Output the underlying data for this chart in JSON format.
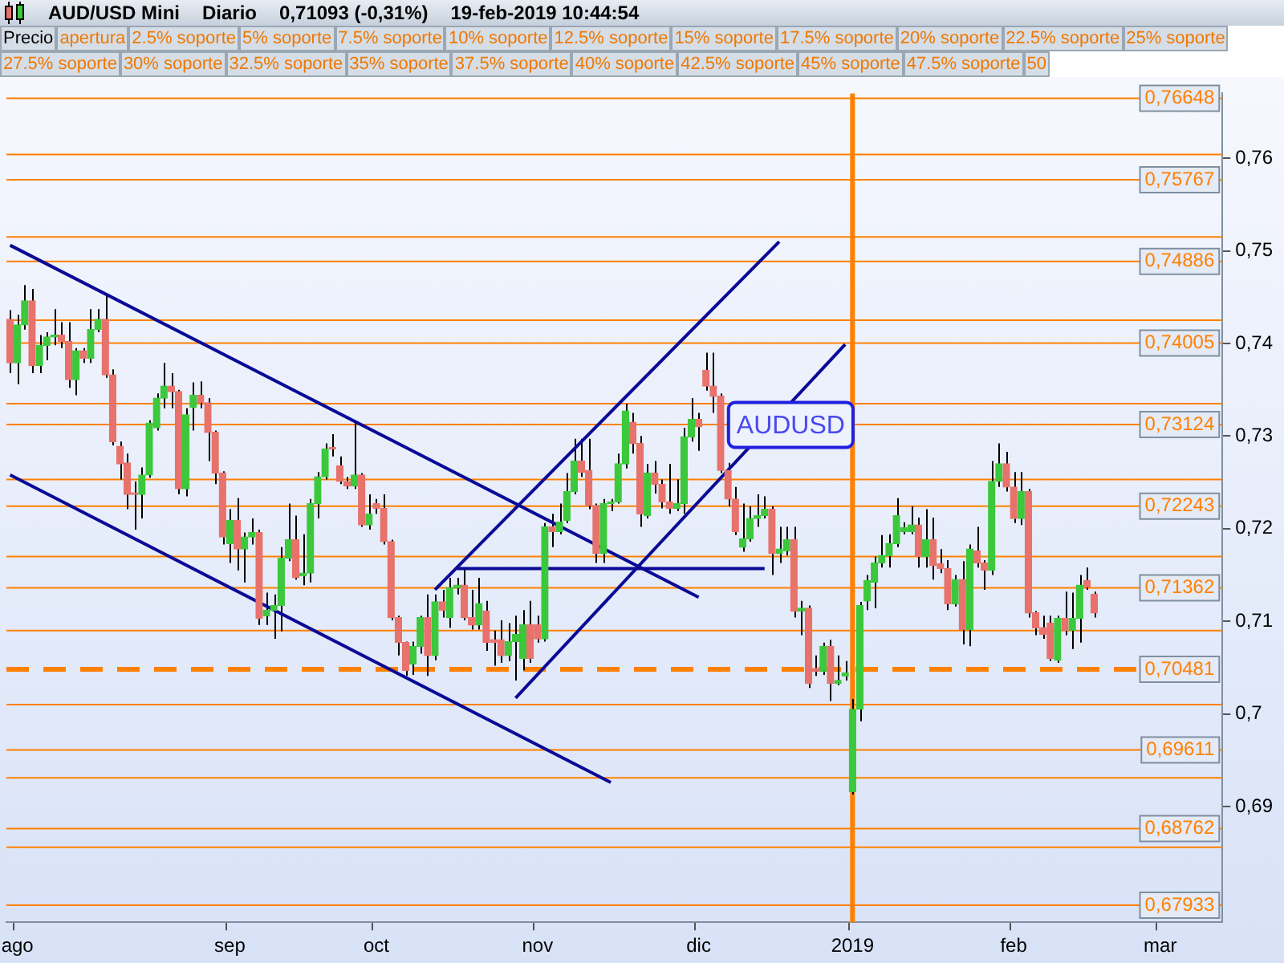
{
  "chart_data": {
    "type": "candlestick",
    "title": "AUD/USD Mini",
    "subtitle": "Diario",
    "annotations": [
      "0,71093 (-0,31%)",
      "19-feb-2019 10:44:54",
      "Precio",
      "apertura",
      "2.5% soporte",
      "5% soporte",
      "7.5% soporte",
      "10% soporte",
      "12.5% soporte",
      "15% soporte",
      "17.5% soporte",
      "20% soporte",
      "22.5% soporte",
      "25% soporte",
      "27.5% soporte",
      "30% soporte",
      "32.5% soporte",
      "35% soporte",
      "37.5% soporte",
      "40% soporte",
      "42.5% soporte",
      "45% soporte",
      "47.5% soporte",
      "50",
      "AUDUSD"
    ],
    "categories": [
      null,
      "ago",
      null,
      null,
      null,
      null,
      null,
      null,
      null,
      null,
      null,
      null,
      null,
      null,
      null,
      null,
      null,
      null,
      null,
      null,
      null,
      null,
      null,
      null,
      null,
      null,
      null,
      null,
      null,
      null,
      "sep",
      null,
      null,
      null,
      null,
      null,
      null,
      null,
      null,
      null,
      null,
      null,
      null,
      null,
      null,
      null,
      null,
      null,
      null,
      null,
      "oct",
      null,
      null,
      null,
      null,
      null,
      null,
      null,
      null,
      null,
      null,
      null,
      null,
      null,
      null,
      null,
      null,
      null,
      null,
      null,
      null,
      null,
      "nov",
      null,
      null,
      null,
      null,
      null,
      null,
      null,
      null,
      null,
      null,
      null,
      null,
      null,
      null,
      null,
      null,
      null,
      null,
      null,
      null,
      null,
      "dic",
      null,
      null,
      null,
      null,
      null,
      null,
      null,
      null,
      null,
      null,
      null,
      null,
      null,
      null,
      null,
      null,
      null,
      null,
      null,
      null,
      "2019",
      null,
      null,
      null,
      null,
      null,
      null,
      null,
      null,
      null,
      null,
      null,
      null,
      null,
      null,
      null,
      null,
      null,
      null,
      null,
      null,
      null,
      "feb",
      null,
      null,
      null,
      null,
      null,
      null,
      null,
      null,
      null,
      null,
      null,
      null,
      null,
      null,
      null,
      null,
      null,
      null,
      null,
      "mar",
      null,
      null,
      null,
      null,
      null,
      null,
      null,
      null
    ],
    "ohlc": [
      [
        0.7426,
        0.7436,
        0.7368,
        0.7379
      ],
      [
        0.7379,
        0.7431,
        0.7356,
        0.742
      ],
      [
        0.742,
        0.7463,
        0.7415,
        0.7446
      ],
      [
        0.7446,
        0.7459,
        0.7368,
        0.7376
      ],
      [
        0.7376,
        0.7409,
        0.7368,
        0.7398
      ],
      [
        0.7398,
        0.7412,
        0.7382,
        0.7407
      ],
      [
        0.7407,
        0.7437,
        0.7398,
        0.7409
      ],
      [
        0.7409,
        0.7423,
        0.7395,
        0.7402
      ],
      [
        0.7402,
        0.7423,
        0.7352,
        0.7361
      ],
      [
        0.7361,
        0.7395,
        0.7344,
        0.7392
      ],
      [
        0.7392,
        0.7395,
        0.7379,
        0.7384
      ],
      [
        0.7384,
        0.7437,
        0.7379,
        0.7415
      ],
      [
        0.7415,
        0.7437,
        0.7412,
        0.7426
      ],
      [
        0.7426,
        0.7451,
        0.7363,
        0.7366
      ],
      [
        0.7366,
        0.7372,
        0.729,
        0.7294
      ],
      [
        0.7289,
        0.7294,
        0.7253,
        0.727
      ],
      [
        0.7271,
        0.7281,
        0.7221,
        0.7237
      ],
      [
        0.7238,
        0.7251,
        0.7199,
        0.7237
      ],
      [
        0.7237,
        0.7266,
        0.7211,
        0.7258
      ],
      [
        0.7258,
        0.7317,
        0.7255,
        0.7314
      ],
      [
        0.7309,
        0.7346,
        0.7306,
        0.7341
      ],
      [
        0.7341,
        0.7379,
        0.733,
        0.7354
      ],
      [
        0.7354,
        0.7368,
        0.733,
        0.7348
      ],
      [
        0.7348,
        0.735,
        0.7237,
        0.7243
      ],
      [
        0.7243,
        0.733,
        0.7235,
        0.7323
      ],
      [
        0.7331,
        0.7358,
        0.7306,
        0.7344
      ],
      [
        0.7344,
        0.7359,
        0.733,
        0.7336
      ],
      [
        0.7336,
        0.7341,
        0.7273,
        0.7304
      ],
      [
        0.7304,
        0.7306,
        0.7248,
        0.726
      ],
      [
        0.726,
        0.7262,
        0.7183,
        0.7191
      ],
      [
        0.7184,
        0.7221,
        0.7163,
        0.7209
      ],
      [
        0.7209,
        0.7233,
        0.7155,
        0.7178
      ],
      [
        0.7178,
        0.7196,
        0.7142,
        0.7191
      ],
      [
        0.7191,
        0.7211,
        0.7183,
        0.7196
      ],
      [
        0.7196,
        0.7199,
        0.7096,
        0.7103
      ],
      [
        0.7106,
        0.7131,
        0.7096,
        0.7112
      ],
      [
        0.7112,
        0.7129,
        0.7081,
        0.7117
      ],
      [
        0.7117,
        0.718,
        0.7089,
        0.7168
      ],
      [
        0.7168,
        0.7227,
        0.7165,
        0.7188
      ],
      [
        0.7188,
        0.7214,
        0.7145,
        0.7147
      ],
      [
        0.7149,
        0.7194,
        0.7139,
        0.7152
      ],
      [
        0.7152,
        0.7232,
        0.7142,
        0.7227
      ],
      [
        0.7227,
        0.7261,
        0.7211,
        0.7256
      ],
      [
        0.7256,
        0.7292,
        0.7253,
        0.7286
      ],
      [
        0.7287,
        0.7302,
        0.7278,
        0.7286
      ],
      [
        0.7268,
        0.7278,
        0.7248,
        0.7251
      ],
      [
        0.7251,
        0.7256,
        0.7243,
        0.7246
      ],
      [
        0.7246,
        0.7315,
        0.7243,
        0.7258
      ],
      [
        0.7258,
        0.726,
        0.7202,
        0.7204
      ],
      [
        0.7204,
        0.7237,
        0.7199,
        0.7216
      ],
      [
        0.7227,
        0.7232,
        0.7216,
        0.7222
      ],
      [
        0.7222,
        0.7237,
        0.7183,
        0.7186
      ],
      [
        0.7186,
        0.7188,
        0.7101,
        0.7104
      ],
      [
        0.7104,
        0.7106,
        0.7063,
        0.7077
      ],
      [
        0.7077,
        0.7078,
        0.7041,
        0.7047
      ],
      [
        0.7054,
        0.7078,
        0.7042,
        0.7073
      ],
      [
        0.7073,
        0.7106,
        0.7065,
        0.7104
      ],
      [
        0.7104,
        0.7129,
        0.7041,
        0.7063
      ],
      [
        0.7063,
        0.7129,
        0.7058,
        0.7121
      ],
      [
        0.7121,
        0.7134,
        0.7104,
        0.7112
      ],
      [
        0.7104,
        0.7147,
        0.7093,
        0.7136
      ],
      [
        0.7136,
        0.7147,
        0.7129,
        0.7139
      ],
      [
        0.7139,
        0.7157,
        0.7101,
        0.7104
      ],
      [
        0.7104,
        0.7134,
        0.7091,
        0.7096
      ],
      [
        0.7096,
        0.7147,
        0.7091,
        0.7119
      ],
      [
        0.7111,
        0.7122,
        0.7068,
        0.7077
      ],
      [
        0.708,
        0.709,
        0.7052,
        0.7077
      ],
      [
        0.708,
        0.7101,
        0.7055,
        0.7063
      ],
      [
        0.7063,
        0.7098,
        0.7057,
        0.7078
      ],
      [
        0.7078,
        0.7106,
        0.7036,
        0.7086
      ],
      [
        0.706,
        0.7112,
        0.7047,
        0.7096
      ],
      [
        0.7096,
        0.7122,
        0.7055,
        0.706
      ],
      [
        0.7096,
        0.7106,
        0.7077,
        0.7081
      ],
      [
        0.7081,
        0.7206,
        0.7078,
        0.7202
      ],
      [
        0.7202,
        0.7216,
        0.718,
        0.7197
      ],
      [
        0.7197,
        0.7227,
        0.7194,
        0.7207
      ],
      [
        0.7209,
        0.726,
        0.7206,
        0.724
      ],
      [
        0.724,
        0.7297,
        0.7237,
        0.7273
      ],
      [
        0.7273,
        0.7297,
        0.7256,
        0.7261
      ],
      [
        0.7263,
        0.7297,
        0.7221,
        0.7225
      ],
      [
        0.7225,
        0.7227,
        0.7163,
        0.7173
      ],
      [
        0.7173,
        0.7232,
        0.7163,
        0.7227
      ],
      [
        0.7227,
        0.7232,
        0.7219,
        0.7229
      ],
      [
        0.7229,
        0.7281,
        0.7227,
        0.727
      ],
      [
        0.727,
        0.7335,
        0.7265,
        0.7327
      ],
      [
        0.7315,
        0.7325,
        0.7281,
        0.7292
      ],
      [
        0.7292,
        0.73,
        0.7202,
        0.7216
      ],
      [
        0.7214,
        0.727,
        0.7211,
        0.726
      ],
      [
        0.726,
        0.7273,
        0.7238,
        0.7248
      ],
      [
        0.7248,
        0.7253,
        0.7222,
        0.7229
      ],
      [
        0.7229,
        0.727,
        0.7216,
        0.7222
      ],
      [
        0.7222,
        0.7253,
        0.7219,
        0.7227
      ],
      [
        0.7227,
        0.7309,
        0.7216,
        0.7299
      ],
      [
        0.7299,
        0.7341,
        0.7294,
        0.7318
      ],
      [
        0.7318,
        0.7325,
        0.7284,
        0.731
      ],
      [
        0.7371,
        0.739,
        0.7349,
        0.7354
      ],
      [
        0.7354,
        0.739,
        0.7325,
        0.7343
      ],
      [
        0.7343,
        0.7346,
        0.726,
        0.7263
      ],
      [
        0.7263,
        0.7271,
        0.7224,
        0.7232
      ],
      [
        0.7232,
        0.7245,
        0.7193,
        0.7197
      ],
      [
        0.718,
        0.7227,
        0.7175,
        0.7189
      ],
      [
        0.7189,
        0.7224,
        0.7186,
        0.7211
      ],
      [
        0.7211,
        0.7237,
        0.7202,
        0.7214
      ],
      [
        0.7214,
        0.7235,
        0.7211,
        0.7221
      ],
      [
        0.7221,
        0.7224,
        0.715,
        0.7173
      ],
      [
        0.7173,
        0.7202,
        0.7163,
        0.7178
      ],
      [
        0.7176,
        0.7202,
        0.7171,
        0.7188
      ],
      [
        0.7188,
        0.7202,
        0.7104,
        0.7111
      ],
      [
        0.7111,
        0.7122,
        0.7085,
        0.7114
      ],
      [
        0.7114,
        0.7117,
        0.7028,
        0.7033
      ],
      [
        0.7049,
        0.7063,
        0.7041,
        0.7046
      ],
      [
        0.7046,
        0.7077,
        0.7042,
        0.7073
      ],
      [
        0.7073,
        0.708,
        0.7014,
        0.7033
      ],
      [
        0.7033,
        0.7063,
        0.7031,
        0.7036
      ],
      [
        0.7041,
        0.7057,
        0.7036,
        0.7044
      ],
      [
        0.6916,
        0.7016,
        0.6913,
        0.7005
      ],
      [
        0.7005,
        0.7121,
        0.6992,
        0.7117
      ],
      [
        0.7122,
        0.715,
        0.7112,
        0.7144
      ],
      [
        0.7142,
        0.717,
        0.7114,
        0.7163
      ],
      [
        0.7163,
        0.7193,
        0.7158,
        0.7171
      ],
      [
        0.7171,
        0.7194,
        0.7158,
        0.7184
      ],
      [
        0.7184,
        0.7233,
        0.718,
        0.7214
      ],
      [
        0.7197,
        0.7207,
        0.7194,
        0.7201
      ],
      [
        0.7197,
        0.7224,
        0.7194,
        0.7204
      ],
      [
        0.7204,
        0.7212,
        0.7158,
        0.717
      ],
      [
        0.717,
        0.7221,
        0.7158,
        0.7188
      ],
      [
        0.7188,
        0.7212,
        0.7145,
        0.716
      ],
      [
        0.7162,
        0.7178,
        0.7152,
        0.7157
      ],
      [
        0.7157,
        0.7166,
        0.7112,
        0.7119
      ],
      [
        0.7119,
        0.715,
        0.7116,
        0.7145
      ],
      [
        0.7145,
        0.7165,
        0.7075,
        0.7091
      ],
      [
        0.7091,
        0.7183,
        0.7073,
        0.7178
      ],
      [
        0.7176,
        0.7202,
        0.7158,
        0.7163
      ],
      [
        0.7163,
        0.7166,
        0.7134,
        0.7155
      ],
      [
        0.7155,
        0.7273,
        0.715,
        0.7251
      ],
      [
        0.7251,
        0.7292,
        0.7245,
        0.727
      ],
      [
        0.727,
        0.7283,
        0.724,
        0.7245
      ],
      [
        0.7245,
        0.7261,
        0.7206,
        0.7211
      ],
      [
        0.7211,
        0.7261,
        0.7204,
        0.724
      ],
      [
        0.724,
        0.7243,
        0.7104,
        0.7109
      ],
      [
        0.7109,
        0.7111,
        0.7085,
        0.7093
      ],
      [
        0.7093,
        0.7106,
        0.7081,
        0.7086
      ],
      [
        0.7098,
        0.7106,
        0.7057,
        0.706
      ],
      [
        0.7058,
        0.7106,
        0.7055,
        0.7103
      ],
      [
        0.7103,
        0.7132,
        0.7085,
        0.709
      ],
      [
        0.709,
        0.7131,
        0.707,
        0.7103
      ],
      [
        0.7103,
        0.715,
        0.7077,
        0.7139
      ],
      [
        0.7144,
        0.7158,
        0.7134,
        0.7137
      ],
      [
        0.7129,
        0.7132,
        0.7104,
        0.7109
      ],
      null,
      null,
      null,
      null,
      null,
      null,
      null,
      null,
      null,
      null,
      null,
      null,
      null,
      null,
      null,
      null,
      null
    ],
    "colors": [
      "#e8726c",
      "#3cc83c",
      "#3cc83c",
      "#e8726c",
      "#3cc83c",
      "#3cc83c",
      "#3cc83c",
      "#e8726c",
      "#e8726c",
      "#3cc83c",
      "#e8726c",
      "#3cc83c",
      "#3cc83c",
      "#e8726c",
      "#e8726c",
      "#e8726c",
      "#e8726c",
      "#e8726c",
      "#3cc83c",
      "#3cc83c",
      "#3cc83c",
      "#3cc83c",
      "#e8726c",
      "#e8726c",
      "#3cc83c",
      "#3cc83c",
      "#e8726c",
      "#e8726c",
      "#e8726c",
      "#e8726c",
      "#3cc83c",
      "#e8726c",
      "#3cc83c",
      "#3cc83c",
      "#e8726c",
      "#3cc83c",
      "#3cc83c",
      "#3cc83c",
      "#3cc83c",
      "#e8726c",
      "#3cc83c",
      "#3cc83c",
      "#3cc83c",
      "#3cc83c",
      "#e8726c",
      "#e8726c",
      "#e8726c",
      "#3cc83c",
      "#e8726c",
      "#3cc83c",
      "#e8726c",
      "#e8726c",
      "#e8726c",
      "#e8726c",
      "#e8726c",
      "#3cc83c",
      "#3cc83c",
      "#e8726c",
      "#3cc83c",
      "#e8726c",
      "#3cc83c",
      "#3cc83c",
      "#e8726c",
      "#e8726c",
      "#3cc83c",
      "#e8726c",
      "#e8726c",
      "#e8726c",
      "#3cc83c",
      "#3cc83c",
      "#3cc83c",
      "#e8726c",
      "#e8726c",
      "#3cc83c",
      "#e8726c",
      "#3cc83c",
      "#3cc83c",
      "#3cc83c",
      "#e8726c",
      "#e8726c",
      "#e8726c",
      "#3cc83c",
      "#3cc83c",
      "#3cc83c",
      "#3cc83c",
      "#e8726c",
      "#e8726c",
      "#3cc83c",
      "#e8726c",
      "#e8726c",
      "#e8726c",
      "#3cc83c",
      "#3cc83c",
      "#3cc83c",
      "#e8726c",
      "#e8726c",
      "#e8726c",
      "#e8726c",
      "#e8726c",
      "#e8726c",
      "#3cc83c",
      "#3cc83c",
      "#3cc83c",
      "#3cc83c",
      "#e8726c",
      "#3cc83c",
      "#3cc83c",
      "#e8726c",
      "#3cc83c",
      "#e8726c",
      "#e8726c",
      "#3cc83c",
      "#e8726c",
      "#3cc83c",
      "#3cc83c",
      "#3cc83c",
      "#3cc83c",
      "#3cc83c",
      "#3cc83c",
      "#3cc83c",
      "#3cc83c",
      "#3cc83c",
      "#3cc83c",
      "#3cc83c",
      "#e8726c",
      "#3cc83c",
      "#e8726c",
      "#e8726c",
      "#e8726c",
      "#3cc83c",
      "#e8726c",
      "#3cc83c",
      "#e8726c",
      "#e8726c",
      "#3cc83c",
      "#3cc83c",
      "#e8726c",
      "#e8726c",
      "#3cc83c",
      "#e8726c",
      "#e8726c",
      "#e8726c",
      "#e8726c",
      "#3cc83c",
      "#e8726c",
      "#3cc83c",
      "#3cc83c",
      "#e8726c",
      "#e8726c",
      null,
      null,
      null,
      null,
      null,
      null,
      null,
      null,
      null,
      null,
      null,
      null,
      null,
      null,
      null,
      null,
      null
    ],
    "series": [
      {
        "type": "line",
        "color": "#0a0a96",
        "values": [
          0.7506,
          null,
          null,
          null,
          null,
          null,
          null,
          null,
          null,
          null,
          null,
          null,
          null,
          null,
          null,
          null,
          null,
          null,
          null,
          null,
          null,
          null,
          null,
          null,
          null,
          null,
          null,
          null,
          null,
          null,
          null,
          null,
          null,
          null,
          null,
          null,
          null,
          null,
          null,
          null,
          null,
          null,
          null,
          null,
          null,
          null,
          null,
          null,
          null,
          null,
          null,
          null,
          null,
          null,
          null,
          null,
          null,
          null,
          null,
          null,
          null,
          null,
          null,
          null,
          null,
          null,
          null,
          null,
          null,
          null,
          null,
          null,
          null,
          null,
          null,
          null,
          null,
          null,
          null,
          null,
          null,
          null,
          null,
          null,
          null,
          null,
          null,
          null,
          null,
          null,
          null,
          null,
          null,
          null,
          0.7126,
          null,
          null,
          null,
          null,
          null,
          null,
          null,
          null,
          null,
          null,
          null,
          null,
          null,
          null,
          null,
          null,
          null,
          null,
          null,
          null,
          null,
          null,
          null,
          null,
          null,
          null,
          null,
          null,
          null,
          null,
          null,
          null,
          null,
          null,
          null,
          null,
          null,
          null,
          null,
          null,
          null,
          null,
          null,
          null,
          null,
          null,
          null,
          null,
          null,
          null,
          null,
          null,
          null,
          null,
          null,
          null,
          null,
          null,
          null,
          null,
          null,
          null,
          null,
          null,
          null,
          null,
          null,
          null,
          null,
          null,
          null
        ]
      },
      {
        "type": "line",
        "color": "#0a0a96",
        "values": [
          0.7258,
          null,
          null,
          null,
          null,
          null,
          null,
          null,
          null,
          null,
          null,
          null,
          null,
          null,
          null,
          null,
          null,
          null,
          null,
          null,
          null,
          null,
          null,
          null,
          null,
          null,
          null,
          null,
          null,
          null,
          null,
          null,
          null,
          null,
          null,
          null,
          null,
          null,
          null,
          null,
          null,
          null,
          null,
          null,
          null,
          null,
          null,
          null,
          null,
          null,
          null,
          null,
          null,
          null,
          null,
          null,
          null,
          null,
          null,
          null,
          null,
          null,
          null,
          null,
          null,
          null,
          null,
          null,
          null,
          null,
          null,
          null,
          null,
          null,
          null,
          null,
          null,
          null,
          null,
          null,
          null,
          null,
          0.6926,
          null,
          null,
          null,
          null,
          null,
          null,
          null,
          null,
          null,
          null,
          null,
          null,
          null,
          null,
          null,
          null,
          null,
          null,
          null,
          null,
          null,
          null,
          null,
          null,
          null,
          null,
          null,
          null,
          null,
          null,
          null,
          null,
          null,
          null,
          null,
          null,
          null,
          null,
          null,
          null,
          null,
          null,
          null,
          null,
          null,
          null,
          null,
          null,
          null,
          null,
          null,
          null,
          null,
          null,
          null,
          null,
          null,
          null,
          null,
          null,
          null,
          null,
          null,
          null,
          null,
          null,
          null,
          null,
          null,
          null,
          null,
          null,
          null,
          null,
          null,
          null,
          null,
          null,
          null,
          null,
          null,
          null,
          null
        ]
      },
      {
        "type": "line",
        "color": "#0a0a96",
        "values": [
          null,
          null,
          null,
          null,
          null,
          null,
          null,
          null,
          null,
          null,
          null,
          null,
          null,
          null,
          null,
          null,
          null,
          null,
          null,
          null,
          null,
          null,
          null,
          null,
          null,
          null,
          null,
          null,
          null,
          null,
          null,
          null,
          null,
          null,
          null,
          null,
          null,
          null,
          null,
          null,
          null,
          null,
          null,
          null,
          null,
          null,
          null,
          null,
          null,
          null,
          null,
          null,
          null,
          null,
          null,
          null,
          null,
          null,
          0.7134,
          null,
          null,
          null,
          null,
          null,
          null,
          null,
          null,
          null,
          null,
          null,
          null,
          null,
          null,
          null,
          null,
          null,
          null,
          null,
          null,
          null,
          null,
          null,
          null,
          null,
          null,
          null,
          null,
          null,
          null,
          null,
          null,
          null,
          null,
          null,
          null,
          null,
          null,
          null,
          null,
          null,
          null,
          null,
          null,
          null,
          null,
          0.751,
          null,
          null,
          null,
          null,
          null,
          null,
          null,
          null,
          null,
          null,
          null,
          null,
          null,
          null,
          null,
          null,
          null,
          null,
          null,
          null,
          null,
          null,
          null,
          null,
          null,
          null,
          null,
          null,
          null,
          null,
          null,
          null,
          null,
          null,
          null,
          null,
          null,
          null,
          null,
          null,
          null,
          null,
          null,
          null,
          null,
          null,
          null,
          null,
          null,
          null,
          null,
          null,
          null,
          null,
          null,
          null,
          null,
          null,
          null,
          null
        ]
      },
      {
        "type": "line",
        "color": "#0a0a96",
        "values": [
          null,
          null,
          null,
          null,
          null,
          null,
          null,
          null,
          null,
          null,
          null,
          null,
          null,
          null,
          null,
          null,
          null,
          null,
          null,
          null,
          null,
          null,
          null,
          null,
          null,
          null,
          null,
          null,
          null,
          null,
          null,
          null,
          null,
          null,
          null,
          null,
          null,
          null,
          null,
          null,
          null,
          null,
          null,
          null,
          null,
          null,
          null,
          null,
          null,
          null,
          null,
          null,
          null,
          null,
          null,
          null,
          null,
          null,
          null,
          null,
          null,
          null,
          null,
          null,
          null,
          null,
          null,
          null,
          null,
          0.7017,
          null,
          null,
          null,
          null,
          null,
          null,
          null,
          null,
          null,
          null,
          null,
          null,
          null,
          null,
          null,
          null,
          null,
          null,
          null,
          null,
          null,
          null,
          null,
          null,
          null,
          null,
          null,
          null,
          null,
          null,
          null,
          null,
          null,
          null,
          null,
          null,
          null,
          null,
          null,
          null,
          null,
          null,
          null,
          null,
          0.7399,
          null,
          null,
          null,
          null,
          null,
          null,
          null,
          null,
          null,
          null,
          null,
          null,
          null,
          null,
          null,
          null,
          null,
          null,
          null,
          null,
          null,
          null,
          null,
          null,
          null,
          null,
          null,
          null,
          null,
          null,
          null,
          null,
          null,
          null,
          null,
          null,
          null,
          null,
          null,
          null,
          null,
          null,
          null,
          null,
          null,
          null,
          null,
          null,
          null,
          null,
          null
        ]
      },
      {
        "type": "line",
        "color": "#0a0a96",
        "values": [
          null,
          null,
          null,
          null,
          null,
          null,
          null,
          null,
          null,
          null,
          null,
          null,
          null,
          null,
          null,
          null,
          null,
          null,
          null,
          null,
          null,
          null,
          null,
          null,
          null,
          null,
          null,
          null,
          null,
          null,
          null,
          null,
          null,
          null,
          null,
          null,
          null,
          null,
          null,
          null,
          null,
          null,
          null,
          null,
          null,
          null,
          null,
          null,
          null,
          null,
          null,
          null,
          null,
          null,
          null,
          null,
          null,
          null,
          null,
          null,
          null,
          0.7157,
          null,
          null,
          null,
          null,
          null,
          null,
          null,
          null,
          null,
          null,
          null,
          null,
          null,
          null,
          null,
          null,
          null,
          null,
          null,
          null,
          null,
          null,
          null,
          null,
          null,
          null,
          null,
          null,
          null,
          null,
          null,
          null,
          null,
          null,
          null,
          null,
          null,
          null,
          null,
          null,
          null,
          0.7157,
          null,
          null,
          null,
          null,
          null,
          null,
          null,
          null,
          null,
          null,
          null,
          null,
          null,
          null,
          null,
          null,
          null,
          null,
          null,
          null,
          null,
          null,
          null,
          null,
          null,
          null,
          null,
          null,
          null,
          null,
          null,
          null,
          null,
          null,
          null,
          null,
          null,
          null,
          null,
          null,
          null,
          null,
          null,
          null,
          null,
          null,
          null,
          null,
          null,
          null,
          null,
          null,
          null,
          null,
          null,
          null,
          null,
          null,
          null,
          null,
          null,
          null
        ]
      }
    ],
    "ylim": [
      0.6775,
      0.767
    ],
    "yticks": [
      {
        "value": 0.69,
        "label": "0,69"
      },
      {
        "value": 0.7,
        "label": "0,7"
      },
      {
        "value": 0.71,
        "label": "0,71"
      },
      {
        "value": 0.72,
        "label": "0,72"
      },
      {
        "value": 0.73,
        "label": "0,73"
      },
      {
        "value": 0.74,
        "label": "0,74"
      },
      {
        "value": 0.75,
        "label": "0,75"
      },
      {
        "value": 0.76,
        "label": "0,76"
      }
    ],
    "ref_lines": [
      {
        "axis": "x",
        "value": "2019",
        "color": "#ff8000"
      },
      {
        "axis": "y",
        "value": 0.7604,
        "color": "#ff8000"
      },
      {
        "axis": "y",
        "value": 0.7515,
        "color": "#ff8000"
      },
      {
        "axis": "y",
        "value": 0.7425,
        "color": "#ff8000"
      },
      {
        "axis": "y",
        "value": 0.7335,
        "color": "#ff8000"
      },
      {
        "axis": "y",
        "value": 0.7253,
        "color": "#ff8000"
      },
      {
        "axis": "y",
        "value": 0.717,
        "color": "#ff8000"
      },
      {
        "axis": "y",
        "value": 0.709,
        "color": "#ff8000"
      },
      {
        "axis": "y",
        "value": 0.701,
        "color": "#ff8000"
      },
      {
        "axis": "y",
        "value": 0.6931,
        "color": "#ff8000"
      },
      {
        "axis": "y",
        "value": 0.6856,
        "color": "#ff8000"
      },
      {
        "axis": "y",
        "value": 0.76648,
        "label": "0,76648",
        "color": "#ff8000"
      },
      {
        "axis": "y",
        "value": 0.75767,
        "label": "0,75767",
        "color": "#ff8000"
      },
      {
        "axis": "y",
        "value": 0.74886,
        "label": "0,74886",
        "color": "#ff8000"
      },
      {
        "axis": "y",
        "value": 0.74005,
        "label": "0,74005",
        "color": "#ff8000"
      },
      {
        "axis": "y",
        "value": 0.73124,
        "label": "0,73124",
        "color": "#ff8000"
      },
      {
        "axis": "y",
        "value": 0.72243,
        "label": "0,72243",
        "color": "#ff8000"
      },
      {
        "axis": "y",
        "value": 0.71362,
        "label": "0,71362",
        "color": "#ff8000"
      },
      {
        "axis": "y",
        "value": 0.70481,
        "label": "0,70481",
        "color": "#ff8000",
        "line_style": "dashed"
      },
      {
        "axis": "y",
        "value": 0.69611,
        "label": "0,69611",
        "color": "#ff8000"
      },
      {
        "axis": "y",
        "value": 0.68762,
        "label": "0,68762",
        "color": "#ff8000"
      },
      {
        "axis": "y",
        "value": 0.67933,
        "label": "0,67933",
        "color": "#ff8000"
      }
    ]
  }
}
